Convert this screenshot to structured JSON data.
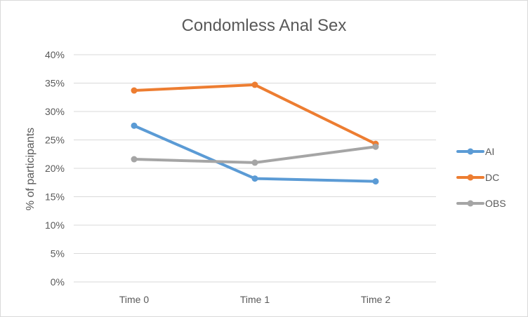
{
  "chart_data": {
    "type": "line",
    "title": "Condomless Anal Sex",
    "xlabel": "",
    "ylabel": "% of participants",
    "categories": [
      "Time 0",
      "Time 1",
      "Time 2"
    ],
    "ylim": [
      0,
      40
    ],
    "yticks": [
      "0%",
      "5%",
      "10%",
      "15%",
      "20%",
      "25%",
      "30%",
      "35%",
      "40%"
    ],
    "grid": true,
    "legend_position": "right",
    "series": [
      {
        "name": "AI",
        "values": [
          27.5,
          18.2,
          17.7
        ],
        "color": "#5B9BD5"
      },
      {
        "name": "DC",
        "values": [
          33.7,
          34.7,
          24.3
        ],
        "color": "#ED7D31"
      },
      {
        "name": "OBS",
        "values": [
          21.6,
          21.0,
          23.8
        ],
        "color": "#A5A5A5"
      }
    ]
  }
}
